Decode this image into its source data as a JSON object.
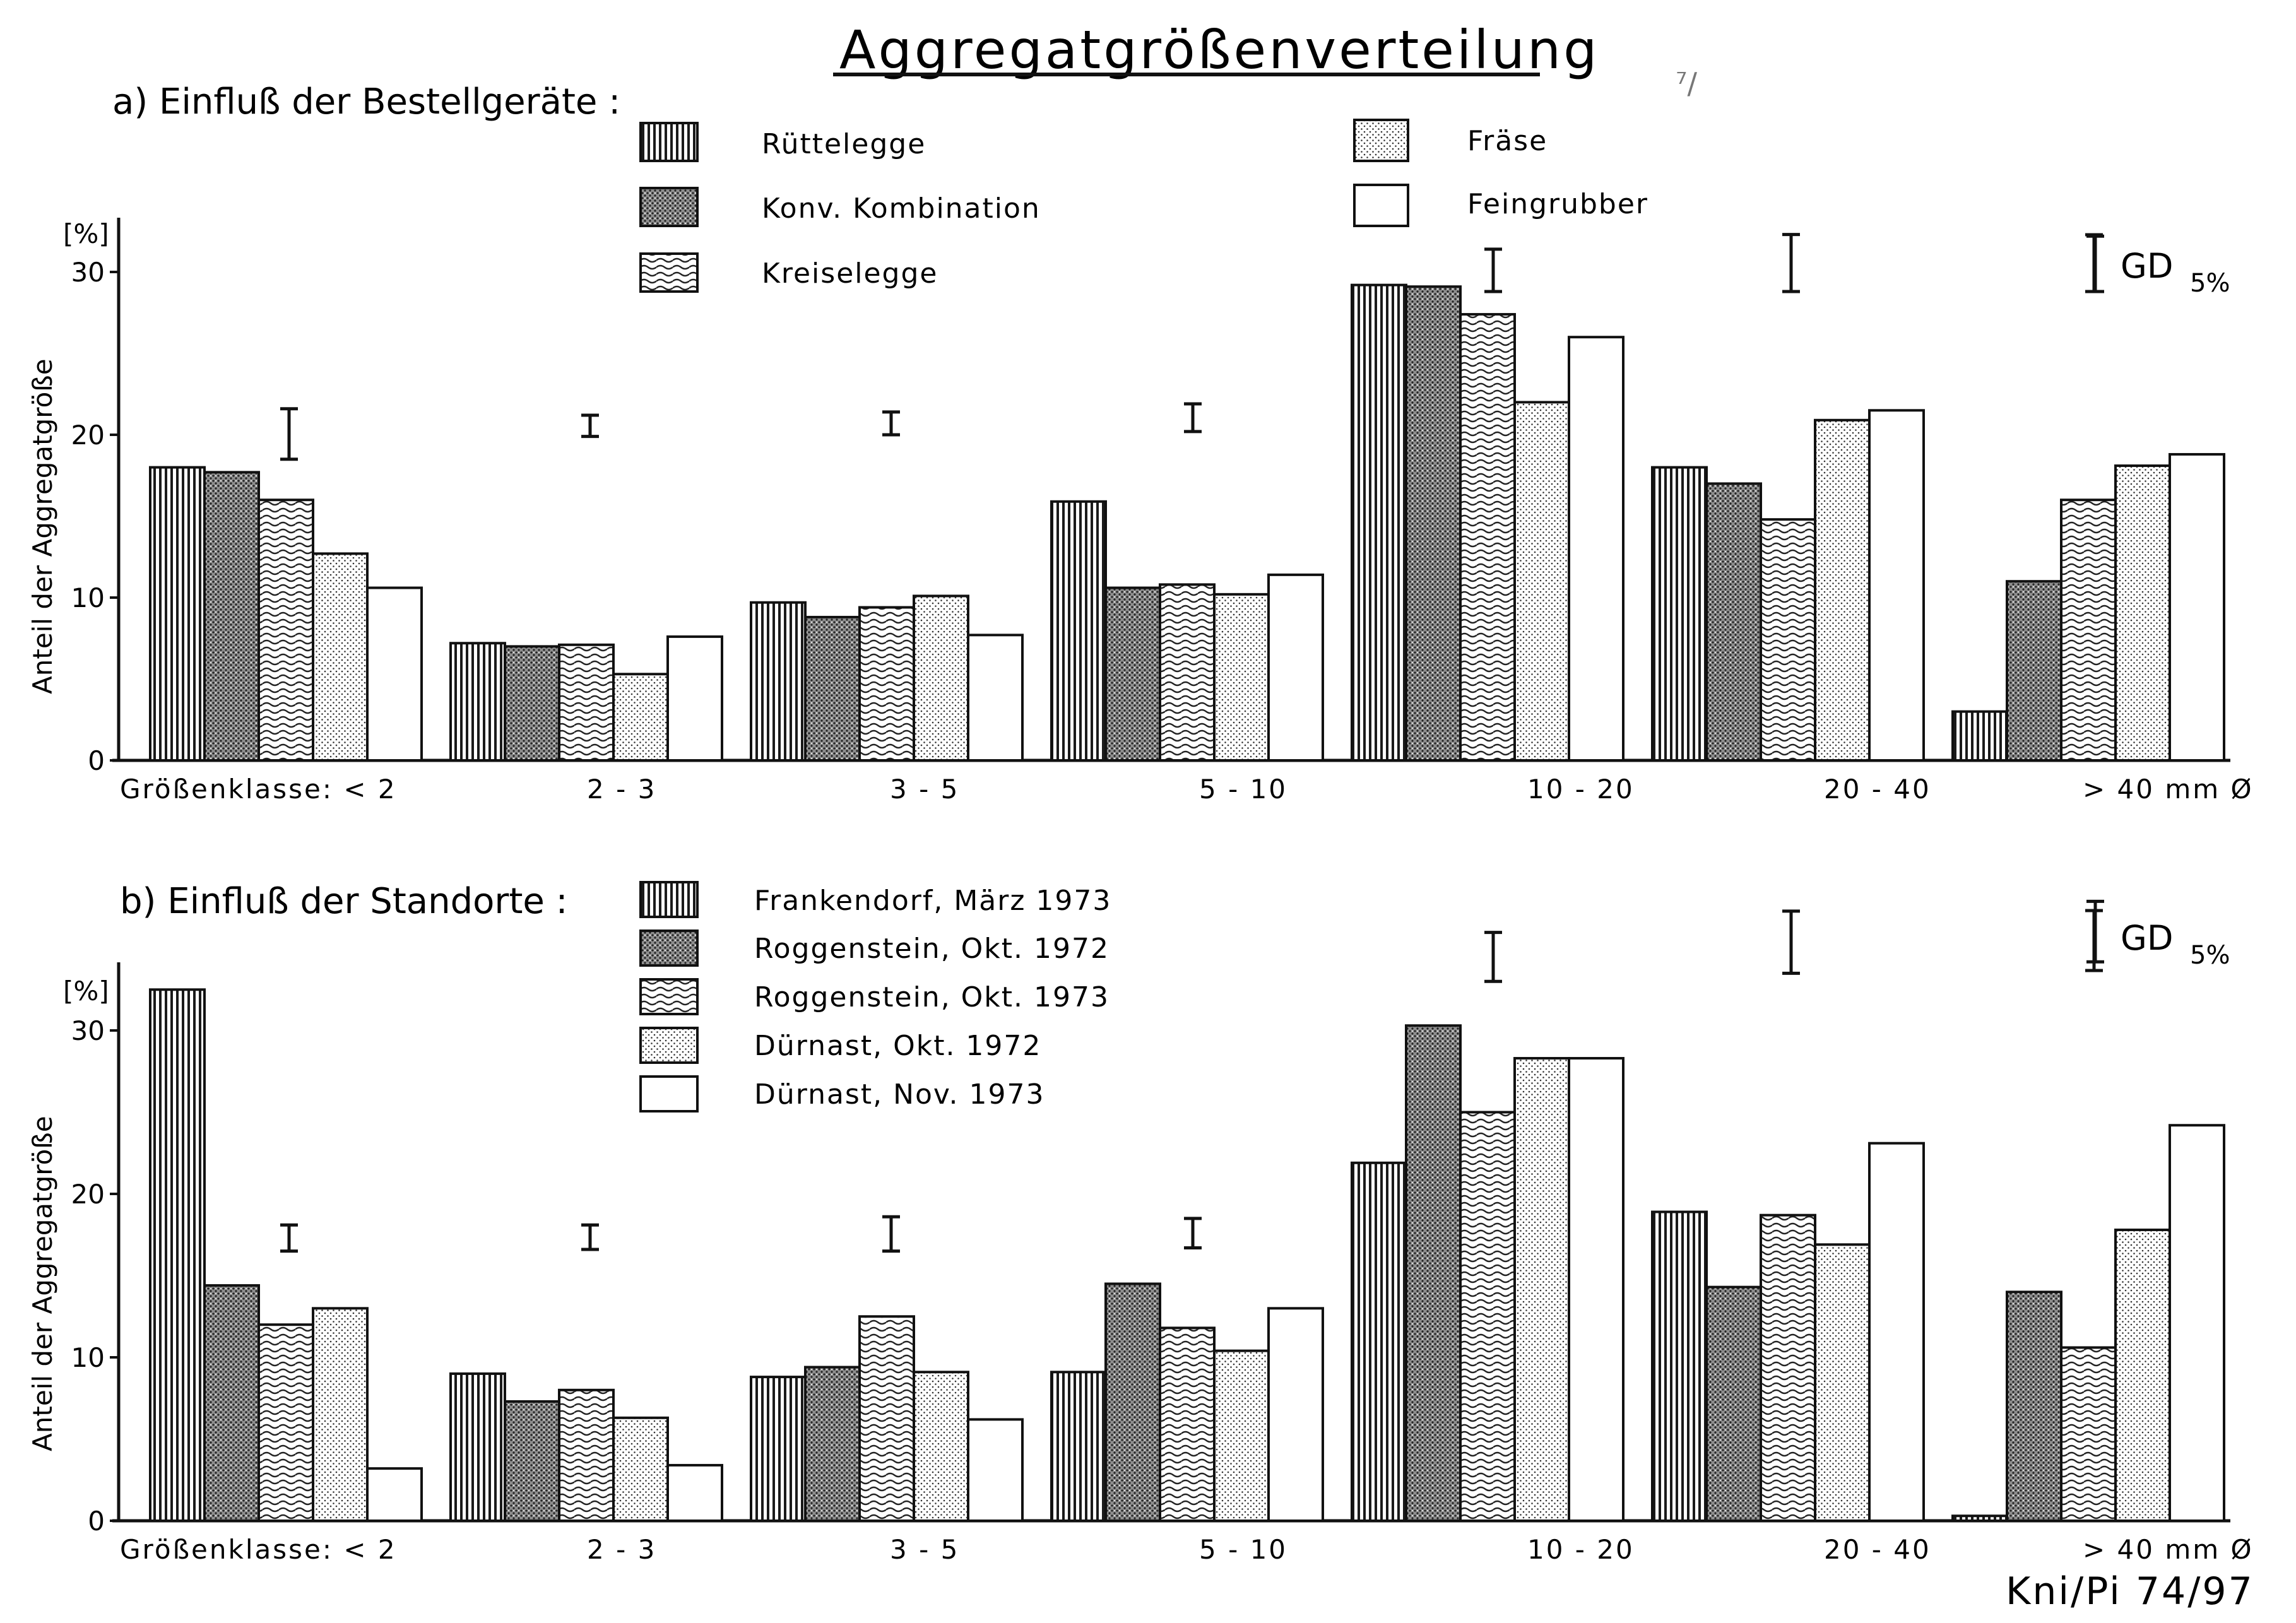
{
  "title": "Aggregatgrößenverteilung",
  "footer_code": "Kni/Pi   74/97",
  "stray_mark": "⁷/",
  "categories_a": [
    "Größenklasse: < 2",
    "2 - 3",
    "3 - 5",
    "5 - 10",
    "10 - 20",
    "20 - 40",
    "> 40   mm Ø"
  ],
  "categories_b": [
    "Größenklasse: < 2",
    "2 - 3",
    "3 - 5",
    "5 - 10",
    "10 - 20",
    "20 - 40",
    "> 40   mm Ø"
  ],
  "chart_data": [
    {
      "type": "bar",
      "title": "a) Einfluß der Bestellgeräte :",
      "ylabel": "Anteil der Aggregatgröße",
      "yunit": "[%]",
      "ylim": [
        0,
        34
      ],
      "yticks": [
        0,
        10,
        20,
        30
      ],
      "categories": [
        "< 2",
        "2-3",
        "3-5",
        "5-10",
        "10-20",
        "20-40",
        "> 40 mm Ø"
      ],
      "series": [
        {
          "name": "Rüttelegge",
          "pattern": "vlines",
          "values": [
            18,
            7.2,
            9.7,
            15.9,
            29.2,
            18,
            3
          ]
        },
        {
          "name": "Konv. Kombination",
          "pattern": "dots-dense",
          "values": [
            17.7,
            7,
            8.8,
            10.6,
            29.1,
            17,
            11
          ]
        },
        {
          "name": "Kreiselegge",
          "pattern": "waves",
          "values": [
            16,
            7.1,
            9.4,
            10.8,
            27.4,
            14.8,
            16
          ]
        },
        {
          "name": "Fräse",
          "pattern": "dots-sparse",
          "values": [
            12.7,
            5.3,
            10.1,
            10.2,
            22,
            20.9,
            18.1
          ]
        },
        {
          "name": "Feingrubber",
          "pattern": "blank",
          "values": [
            10.6,
            7.6,
            7.7,
            11.4,
            26,
            21.5,
            18.8
          ]
        }
      ],
      "lsd": {
        "label": "GD",
        "sub": "5%",
        "intervals": [
          {
            "lo": 18.5,
            "hi": 21.6
          },
          {
            "lo": 19.9,
            "hi": 21.2
          },
          {
            "lo": 20,
            "hi": 21.4
          },
          {
            "lo": 20.2,
            "hi": 21.9
          },
          {
            "lo": 28.8,
            "hi": 31.4
          },
          {
            "lo": 28.8,
            "hi": 32.3
          },
          {
            "lo": 28.8,
            "hi": 32.2
          }
        ]
      }
    },
    {
      "type": "bar",
      "title": "b) Einfluß der Standorte :",
      "ylabel": "Anteil der Aggregatgröße",
      "yunit": "[%]",
      "ylim": [
        0,
        34
      ],
      "yticks": [
        0,
        10,
        20,
        30
      ],
      "categories": [
        "< 2",
        "2-3",
        "3-5",
        "5-10",
        "10-20",
        "20-40",
        "> 40 mm Ø"
      ],
      "series": [
        {
          "name": "Frankendorf, März 1973",
          "pattern": "vlines",
          "values": [
            32.5,
            9,
            8.8,
            9.1,
            21.9,
            18.9,
            0.3
          ]
        },
        {
          "name": "Roggenstein, Okt. 1972",
          "pattern": "dots-dense",
          "values": [
            14.4,
            7.3,
            9.4,
            14.5,
            30.3,
            14.3,
            14
          ]
        },
        {
          "name": "Roggenstein, Okt. 1973",
          "pattern": "waves",
          "values": [
            12,
            8,
            12.5,
            11.8,
            25,
            18.7,
            10.6
          ]
        },
        {
          "name": "Dürnast, Okt. 1972",
          "pattern": "dots-sparse",
          "values": [
            13,
            6.3,
            9.1,
            10.4,
            28.3,
            16.9,
            17.8
          ]
        },
        {
          "name": "Dürnast, Nov. 1973",
          "pattern": "blank",
          "values": [
            3.2,
            3.4,
            6.2,
            13,
            28.3,
            23.1,
            24.2
          ]
        }
      ],
      "lsd": {
        "label": "GD",
        "sub": "5%",
        "intervals": [
          {
            "lo": 16.5,
            "hi": 18.1
          },
          {
            "lo": 16.6,
            "hi": 18.1
          },
          {
            "lo": 16.5,
            "hi": 18.6
          },
          {
            "lo": 16.7,
            "hi": 18.5
          },
          {
            "lo": 33,
            "hi": 36
          },
          {
            "lo": 33.5,
            "hi": 37.3
          },
          {
            "lo": 34.2,
            "hi": 37.9
          }
        ]
      }
    }
  ]
}
